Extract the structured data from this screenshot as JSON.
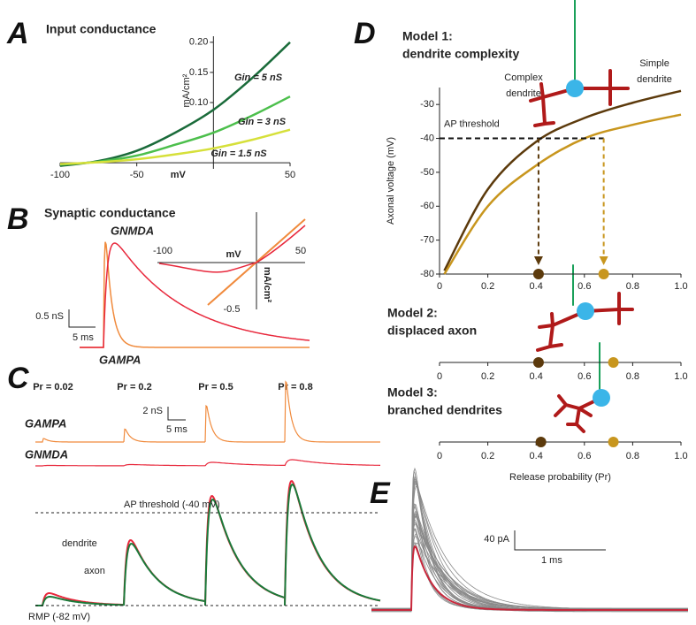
{
  "chart_data": [
    {
      "type": "line",
      "panel": "A",
      "title": "Input conductance",
      "xlabel": "mV",
      "ylabel": "mA/cm²",
      "xlim": [
        -100,
        50
      ],
      "ylim": [
        -0.01,
        0.21
      ],
      "xticks": [
        -100,
        -50,
        50
      ],
      "yticks": [
        {
          "value": 0.1,
          "label": "0.10"
        },
        0.15,
        {
          "value": 0.2,
          "label": "0.20"
        }
      ],
      "x": [
        -100,
        -75,
        -50,
        -25,
        0,
        25,
        50
      ],
      "series": [
        {
          "name": "Gin = 5 nS",
          "color": "#1a6b3a",
          "values": [
            -0.005,
            0.003,
            0.02,
            0.05,
            0.088,
            0.14,
            0.2
          ]
        },
        {
          "name": "Gin = 3 nS",
          "color": "#4cbf4c",
          "values": [
            -0.003,
            0.002,
            0.012,
            0.03,
            0.05,
            0.078,
            0.11
          ]
        },
        {
          "name": "Gin = 1.5 nS",
          "color": "#d6e03a",
          "values": [
            -0.002,
            0.001,
            0.006,
            0.014,
            0.024,
            0.038,
            0.055
          ]
        }
      ]
    },
    {
      "type": "traces",
      "panel": "B",
      "title": "Synaptic conductance",
      "nmda_label": "GNMDA",
      "ampa_label": "GAMPA",
      "scale_y": "0.5 nS",
      "scale_x": "5 ms",
      "inset": {
        "xlabel": "mV",
        "ylabel": "mA/cm²",
        "labels": [
          "-100",
          "50",
          "-0.5"
        ]
      }
    },
    {
      "type": "traces",
      "panel": "C",
      "conditions": [
        "Pr = 0.02",
        "Pr = 0.2",
        "Pr = 0.5",
        "Pr = 0.8"
      ],
      "scale_y": "2 nS",
      "scale_x": "5 ms",
      "ampa_label": "GAMPA",
      "nmda_label": "GNMDA",
      "threshold_label": "AP threshold (-40 mV)",
      "rmp_label": "RMP (-82 mV)",
      "legend": [
        "dendrite",
        "axon"
      ]
    },
    {
      "type": "line",
      "panel": "D",
      "title": [
        "Model 1:",
        "dendrite complexity"
      ],
      "ylabel": "Axonal voltage (mV)",
      "xlim": [
        0,
        1
      ],
      "ylim": [
        -80,
        -25
      ],
      "xticks": [
        0,
        0.2,
        0.4,
        0.6,
        0.8,
        {
          "value": 1,
          "label": "1.0"
        }
      ],
      "yticks": [
        -80,
        -70,
        -60,
        -50,
        -40,
        -30
      ],
      "x": [
        0.02,
        0.2,
        0.4,
        0.6,
        0.8,
        1
      ],
      "series": [
        {
          "name": "Complex dendrite",
          "color": "#5c3a0c",
          "values": [
            -79,
            -55,
            -41,
            -34,
            -29.5,
            -26
          ]
        },
        {
          "name": "Simple dendrite",
          "color": "#c8961e",
          "values": [
            -80,
            -60,
            -48,
            -40,
            -36,
            -33
          ]
        }
      ],
      "threshold": {
        "label": "AP threshold",
        "value": -40
      },
      "points": [
        {
          "x": 0.41,
          "color": "#5c3a0c"
        },
        {
          "x": 0.68,
          "color": "#c8961e"
        }
      ]
    },
    {
      "type": "dots",
      "title": [
        "Model 2:",
        "displaced axon"
      ],
      "xlim": [
        0,
        1
      ],
      "xticks": [
        0,
        0.2,
        0.4,
        0.6,
        0.8,
        {
          "value": 1,
          "label": "1.0"
        }
      ],
      "points": [
        {
          "x": 0.41,
          "color": "#5c3a0c"
        },
        {
          "x": 0.72,
          "color": "#c8961e"
        }
      ]
    },
    {
      "type": "dots",
      "title": [
        "Model 3:",
        "branched dendrites"
      ],
      "xlim": [
        0,
        1
      ],
      "xlabel": "Release probability (Pr)",
      "xticks": [
        0,
        0.2,
        0.4,
        0.6,
        0.8,
        {
          "value": 1,
          "label": "1.0"
        }
      ],
      "points": [
        {
          "x": 0.42,
          "color": "#5c3a0c"
        },
        {
          "x": 0.72,
          "color": "#c8961e"
        }
      ]
    },
    {
      "type": "traces",
      "panel": "E",
      "scale_y": "40 pA",
      "scale_x": "1 ms"
    }
  ]
}
